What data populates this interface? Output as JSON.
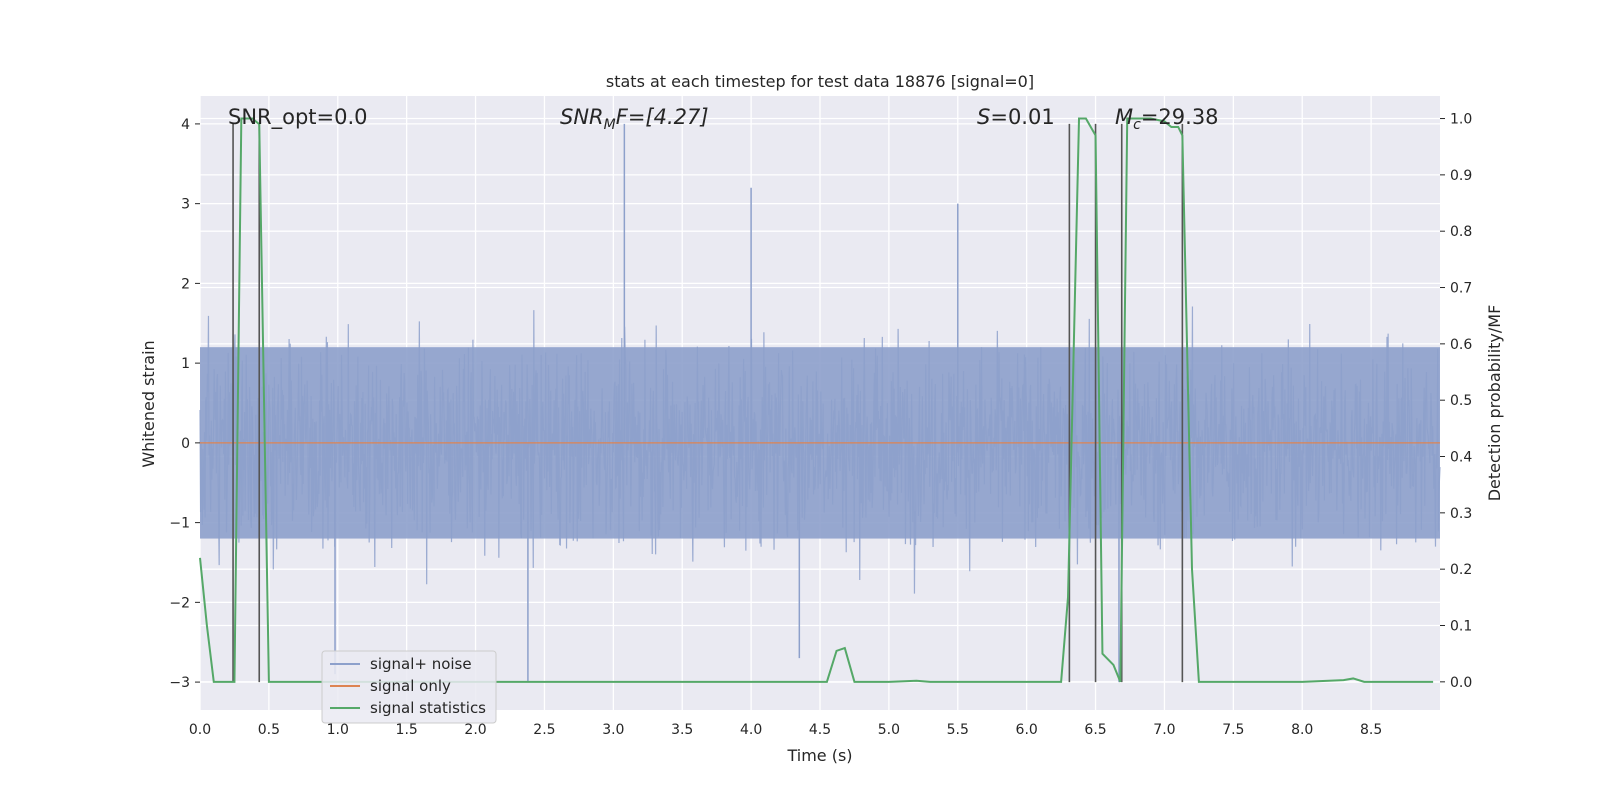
{
  "chart_data": {
    "type": "line",
    "title": "stats at each timestep for test data 18876 [signal=0]",
    "xlabel": "Time (s)",
    "ylabel_left": "Whitened strain",
    "ylabel_right": "Detection probability/MF",
    "xlim": [
      0.0,
      9.0
    ],
    "ylim_left": [
      -3.35,
      4.35
    ],
    "ylim_right": [
      -0.05,
      1.04
    ],
    "x_ticks": [
      "0.0",
      "0.5",
      "1.0",
      "1.5",
      "2.0",
      "2.5",
      "3.0",
      "3.5",
      "4.0",
      "4.5",
      "5.0",
      "5.5",
      "6.0",
      "6.5",
      "7.0",
      "7.5",
      "8.0",
      "8.5"
    ],
    "y_left_ticks": [
      "−3",
      "−2",
      "−1",
      "0",
      "1",
      "2",
      "3",
      "4"
    ],
    "y_right_ticks": [
      "0.0",
      "0.1",
      "0.2",
      "0.3",
      "0.4",
      "0.5",
      "0.6",
      "0.7",
      "0.8",
      "0.9",
      "1.0"
    ],
    "grid": true,
    "legend_placement": "lower-left",
    "annotations": {
      "snr_opt": "SNR_opt=0.0",
      "snr_mf_sym": "SNR",
      "snr_mf_sub": "M",
      "snr_mf_rest": "F=[4.27]",
      "s_sym": "S",
      "s_rest": "=0.01",
      "mc_sym": "M",
      "mc_sub": "c",
      "mc_rest": "=29.38"
    },
    "series": [
      {
        "name": "signal+ noise",
        "color": "#8da0cb",
        "kind": "noise",
        "axis": "left",
        "amplitude_band": [
          -1.2,
          1.2
        ],
        "notable_peaks": [
          {
            "x": 0.43,
            "y": 3.3
          },
          {
            "x": 3.08,
            "y": 4.0
          },
          {
            "x": 4.0,
            "y": 3.2
          },
          {
            "x": 5.5,
            "y": 3.0
          },
          {
            "x": 6.67,
            "y": -3.0
          },
          {
            "x": 2.38,
            "y": -3.0
          },
          {
            "x": 0.98,
            "y": -2.9
          },
          {
            "x": 4.35,
            "y": -2.7
          }
        ]
      },
      {
        "name": "signal only",
        "color": "#dd8452",
        "kind": "line",
        "axis": "left",
        "x": [
          0.0,
          9.0
        ],
        "y": [
          0.0,
          0.0
        ]
      },
      {
        "name": "signal statistics",
        "color": "#55a868",
        "kind": "line",
        "axis": "right",
        "x": [
          0.0,
          0.05,
          0.1,
          0.25,
          0.3,
          0.38,
          0.43,
          0.5,
          1.0,
          4.5,
          4.55,
          4.62,
          4.68,
          4.75,
          4.8,
          5.0,
          5.2,
          5.3,
          6.25,
          6.3,
          6.38,
          6.43,
          6.5,
          6.55,
          6.63,
          6.68,
          6.73,
          6.8,
          6.9,
          7.0,
          7.05,
          7.1,
          7.13,
          7.2,
          7.25,
          8.0,
          8.3,
          8.37,
          8.45,
          8.95
        ],
        "y": [
          0.22,
          0.1,
          0.0,
          0.0,
          1.0,
          1.0,
          0.99,
          0.0,
          0.0,
          0.0,
          0.0,
          0.055,
          0.06,
          0.0,
          0.0,
          0.0,
          0.002,
          0.0,
          0.0,
          0.15,
          1.0,
          1.0,
          0.97,
          0.05,
          0.03,
          0.0,
          1.0,
          1.0,
          1.0,
          0.995,
          0.985,
          0.985,
          0.97,
          0.2,
          0.0,
          0.0,
          0.003,
          0.006,
          0.0,
          0.0
        ]
      }
    ],
    "vertical_markers": {
      "color": "#555555",
      "x": [
        0.24,
        0.43,
        6.31,
        6.5,
        6.69,
        7.13
      ]
    }
  }
}
